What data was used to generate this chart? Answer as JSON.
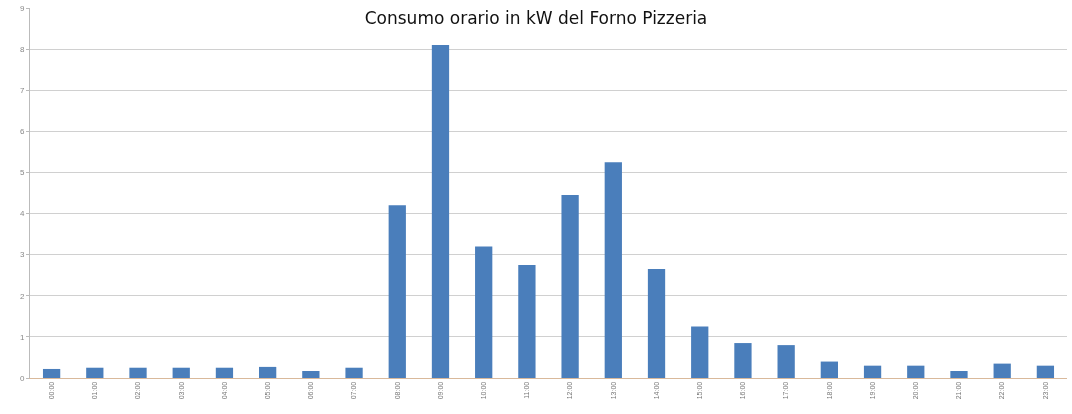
{
  "chart_data": {
    "type": "bar",
    "title": "Consumo orario in kW del Forno Pizzeria",
    "categories": [
      "00:00",
      "01:00",
      "02:00",
      "03:00",
      "04:00",
      "05:00",
      "06:00",
      "07:00",
      "08:00",
      "09:00",
      "10:00",
      "11:00",
      "12:00",
      "13:00",
      "14:00",
      "15:00",
      "16:00",
      "17:00",
      "18:00",
      "19:00",
      "20:00",
      "21:00",
      "22:00",
      "23:00"
    ],
    "values": [
      0.22,
      0.25,
      0.25,
      0.25,
      0.25,
      0.27,
      0.17,
      0.25,
      4.2,
      8.1,
      3.2,
      2.75,
      4.45,
      5.25,
      2.65,
      1.25,
      0.85,
      0.8,
      0.4,
      0.3,
      0.3,
      0.17,
      0.35,
      0.3
    ],
    "color": "#4a7ebb",
    "ylim": [
      0,
      9
    ],
    "yticks": [
      0,
      1,
      2,
      3,
      4,
      5,
      6,
      7,
      8,
      9
    ],
    "grid": "y"
  }
}
